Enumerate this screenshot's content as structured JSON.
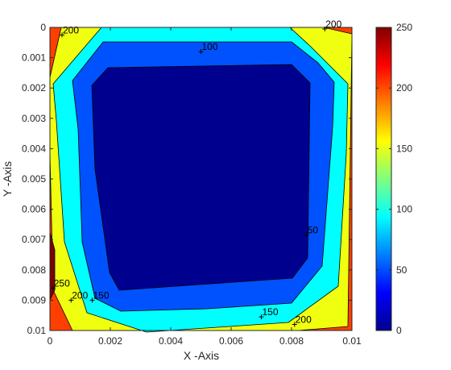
{
  "chart_data": {
    "type": "contour",
    "xlabel": "X -Axis",
    "ylabel": "Y -Axis",
    "xlim": [
      0,
      0.01
    ],
    "ylim": [
      0,
      0.01
    ],
    "y_direction": "reverse",
    "x_ticks": [
      "0",
      "0.002",
      "0.004",
      "0.006",
      "0.008",
      "0.01"
    ],
    "x_tick_values": [
      0,
      0.002,
      0.004,
      0.006,
      0.008,
      0.01
    ],
    "y_ticks": [
      "0",
      "0.001",
      "0.002",
      "0.003",
      "0.004",
      "0.005",
      "0.006",
      "0.007",
      "0.008",
      "0.009",
      "0.01"
    ],
    "y_tick_values": [
      0,
      0.001,
      0.002,
      0.003,
      0.004,
      0.005,
      0.006,
      0.007,
      0.008,
      0.009,
      0.01
    ],
    "colorbar": {
      "range": [
        0,
        250
      ],
      "ticks": [
        "0",
        "50",
        "100",
        "150",
        "200",
        "250"
      ],
      "tick_values": [
        0,
        50,
        100,
        150,
        200,
        250
      ],
      "colormap": "jet"
    },
    "bands": [
      {
        "level": 250,
        "color": "#7f0000"
      },
      {
        "level": 200,
        "color": "#ff3f00"
      },
      {
        "level": 150,
        "color": "#f0ff0f"
      },
      {
        "level": 100,
        "color": "#00ffff"
      },
      {
        "level": 50,
        "color": "#0052ff"
      },
      {
        "level": 0,
        "color": "#00008f"
      }
    ],
    "contour_labels": [
      {
        "text": "200",
        "x": 0.0004,
        "y": 0.00025
      },
      {
        "text": "200",
        "x": 0.0091,
        "y": 5e-05
      },
      {
        "text": "100",
        "x": 0.005,
        "y": 0.0008
      },
      {
        "text": "50",
        "x": 0.0085,
        "y": 0.00685
      },
      {
        "text": "250",
        "x": 0.0001,
        "y": 0.0086
      },
      {
        "text": "200",
        "x": 0.0007,
        "y": 0.009
      },
      {
        "text": "150",
        "x": 0.0014,
        "y": 0.009
      },
      {
        "text": "150",
        "x": 0.007,
        "y": 0.00955
      },
      {
        "text": "200",
        "x": 0.0081,
        "y": 0.0098
      }
    ],
    "grid": false
  }
}
